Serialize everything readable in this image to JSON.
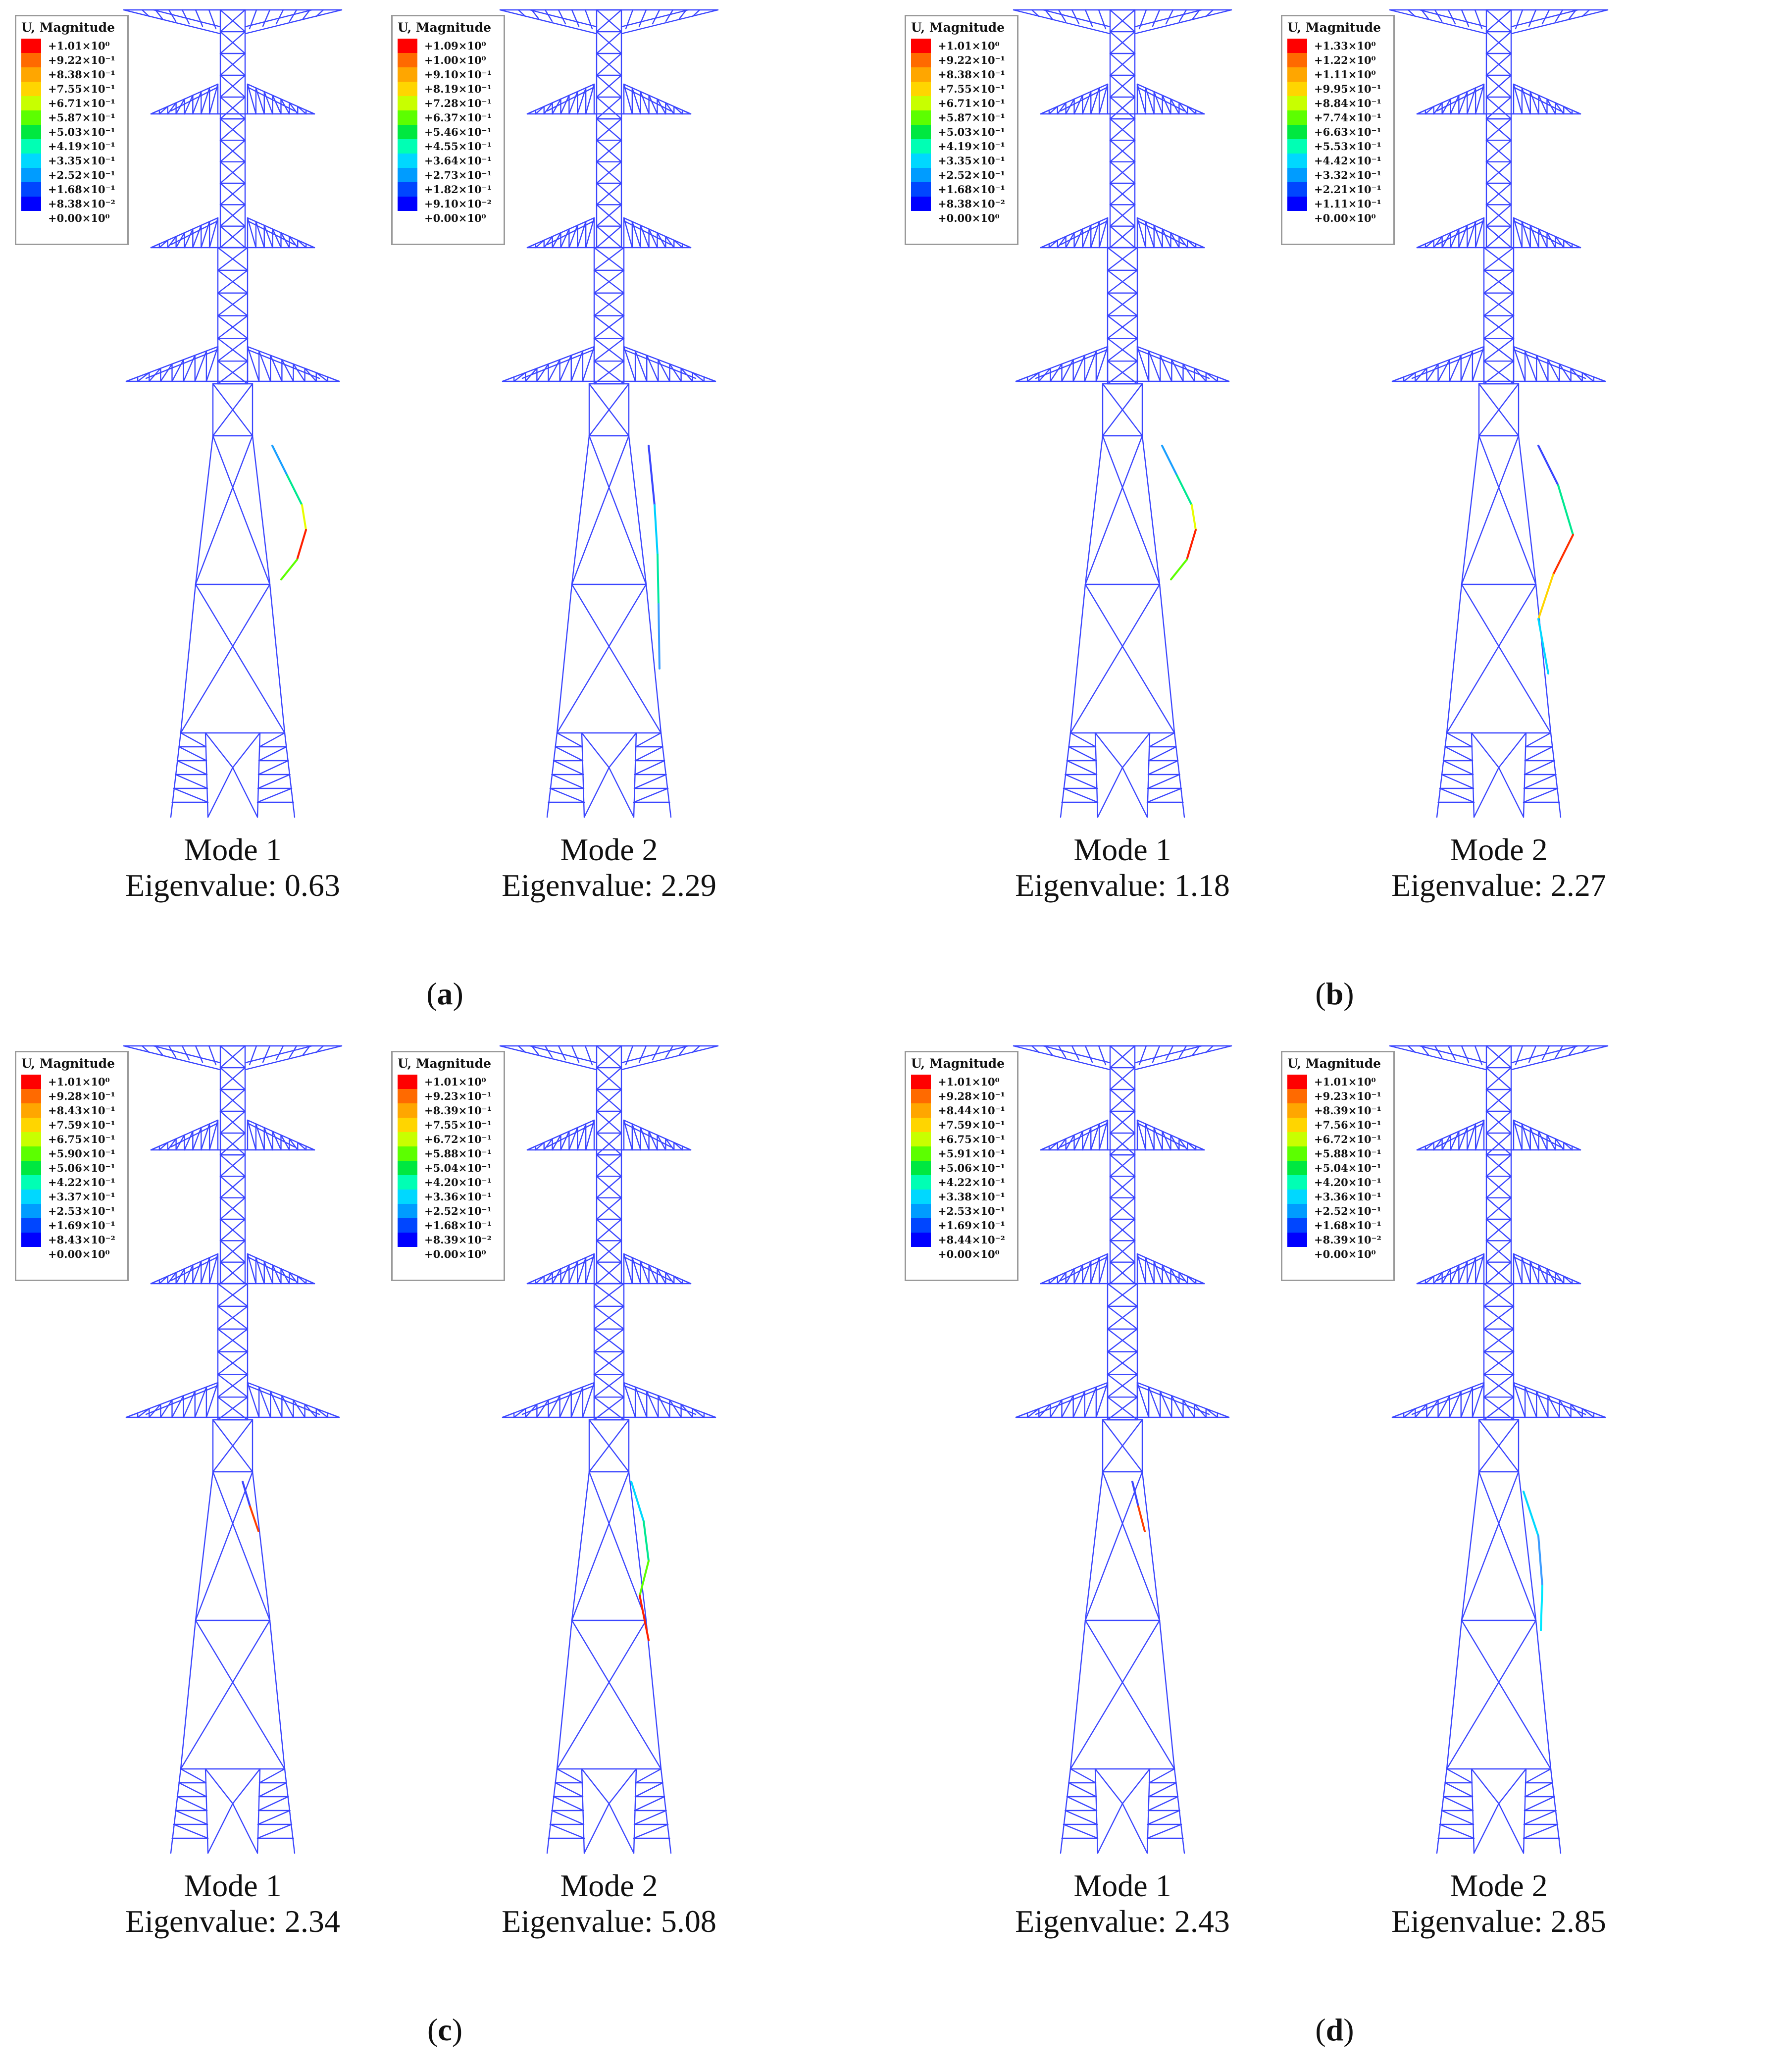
{
  "legend_title": "U, Magnitude",
  "legend_colors": [
    "#ff0000",
    "#ff6a00",
    "#ffa600",
    "#ffd500",
    "#c8ff00",
    "#5cff00",
    "#00e840",
    "#00ffb4",
    "#00d8ff",
    "#009cff",
    "#0046ff",
    "#0000ff"
  ],
  "panels": [
    {
      "label": "a",
      "modes": [
        {
          "caption": "Mode 1",
          "eigen": "Eigenvalue: 0.63",
          "legend": [
            "+1.01×10⁰",
            "+9.22×10⁻¹",
            "+8.38×10⁻¹",
            "+7.55×10⁻¹",
            "+6.71×10⁻¹",
            "+5.87×10⁻¹",
            "+5.03×10⁻¹",
            "+4.19×10⁻¹",
            "+3.35×10⁻¹",
            "+2.52×10⁻¹",
            "+1.68×10⁻¹",
            "+8.38×10⁻²",
            "+0.00×10⁰"
          ]
        },
        {
          "caption": "Mode 2",
          "eigen": "Eigenvalue: 2.29",
          "legend": [
            "+1.09×10⁰",
            "+1.00×10⁰",
            "+9.10×10⁻¹",
            "+8.19×10⁻¹",
            "+7.28×10⁻¹",
            "+6.37×10⁻¹",
            "+5.46×10⁻¹",
            "+4.55×10⁻¹",
            "+3.64×10⁻¹",
            "+2.73×10⁻¹",
            "+1.82×10⁻¹",
            "+9.10×10⁻²",
            "+0.00×10⁰"
          ]
        }
      ]
    },
    {
      "label": "b",
      "modes": [
        {
          "caption": "Mode 1",
          "eigen": "Eigenvalue: 1.18",
          "legend": [
            "+1.01×10⁰",
            "+9.22×10⁻¹",
            "+8.38×10⁻¹",
            "+7.55×10⁻¹",
            "+6.71×10⁻¹",
            "+5.87×10⁻¹",
            "+5.03×10⁻¹",
            "+4.19×10⁻¹",
            "+3.35×10⁻¹",
            "+2.52×10⁻¹",
            "+1.68×10⁻¹",
            "+8.38×10⁻²",
            "+0.00×10⁰"
          ]
        },
        {
          "caption": "Mode 2",
          "eigen": "Eigenvalue: 2.27",
          "legend": [
            "+1.33×10⁰",
            "+1.22×10⁰",
            "+1.11×10⁰",
            "+9.95×10⁻¹",
            "+8.84×10⁻¹",
            "+7.74×10⁻¹",
            "+6.63×10⁻¹",
            "+5.53×10⁻¹",
            "+4.42×10⁻¹",
            "+3.32×10⁻¹",
            "+2.21×10⁻¹",
            "+1.11×10⁻¹",
            "+0.00×10⁰"
          ]
        }
      ]
    },
    {
      "label": "c",
      "modes": [
        {
          "caption": "Mode 1",
          "eigen": "Eigenvalue: 2.34",
          "legend": [
            "+1.01×10⁰",
            "+9.28×10⁻¹",
            "+8.43×10⁻¹",
            "+7.59×10⁻¹",
            "+6.75×10⁻¹",
            "+5.90×10⁻¹",
            "+5.06×10⁻¹",
            "+4.22×10⁻¹",
            "+3.37×10⁻¹",
            "+2.53×10⁻¹",
            "+1.69×10⁻¹",
            "+8.43×10⁻²",
            "+0.00×10⁰"
          ]
        },
        {
          "caption": "Mode 2",
          "eigen": "Eigenvalue: 5.08",
          "legend": [
            "+1.01×10⁰",
            "+9.23×10⁻¹",
            "+8.39×10⁻¹",
            "+7.55×10⁻¹",
            "+6.72×10⁻¹",
            "+5.88×10⁻¹",
            "+5.04×10⁻¹",
            "+4.20×10⁻¹",
            "+3.36×10⁻¹",
            "+2.52×10⁻¹",
            "+1.68×10⁻¹",
            "+8.39×10⁻²",
            "+0.00×10⁰"
          ]
        }
      ]
    },
    {
      "label": "d",
      "modes": [
        {
          "caption": "Mode 1",
          "eigen": "Eigenvalue: 2.43",
          "legend": [
            "+1.01×10⁰",
            "+9.28×10⁻¹",
            "+8.44×10⁻¹",
            "+7.59×10⁻¹",
            "+6.75×10⁻¹",
            "+5.91×10⁻¹",
            "+5.06×10⁻¹",
            "+4.22×10⁻¹",
            "+3.38×10⁻¹",
            "+2.53×10⁻¹",
            "+1.69×10⁻¹",
            "+8.44×10⁻²",
            "+0.00×10⁰"
          ]
        },
        {
          "caption": "Mode 2",
          "eigen": "Eigenvalue: 2.85",
          "legend": [
            "+1.01×10⁰",
            "+9.23×10⁻¹",
            "+8.39×10⁻¹",
            "+7.56×10⁻¹",
            "+6.72×10⁻¹",
            "+5.88×10⁻¹",
            "+5.04×10⁻¹",
            "+4.20×10⁻¹",
            "+3.36×10⁻¹",
            "+2.52×10⁻¹",
            "+1.68×10⁻¹",
            "+8.39×10⁻²",
            "+0.00×10⁰"
          ]
        }
      ]
    }
  ]
}
